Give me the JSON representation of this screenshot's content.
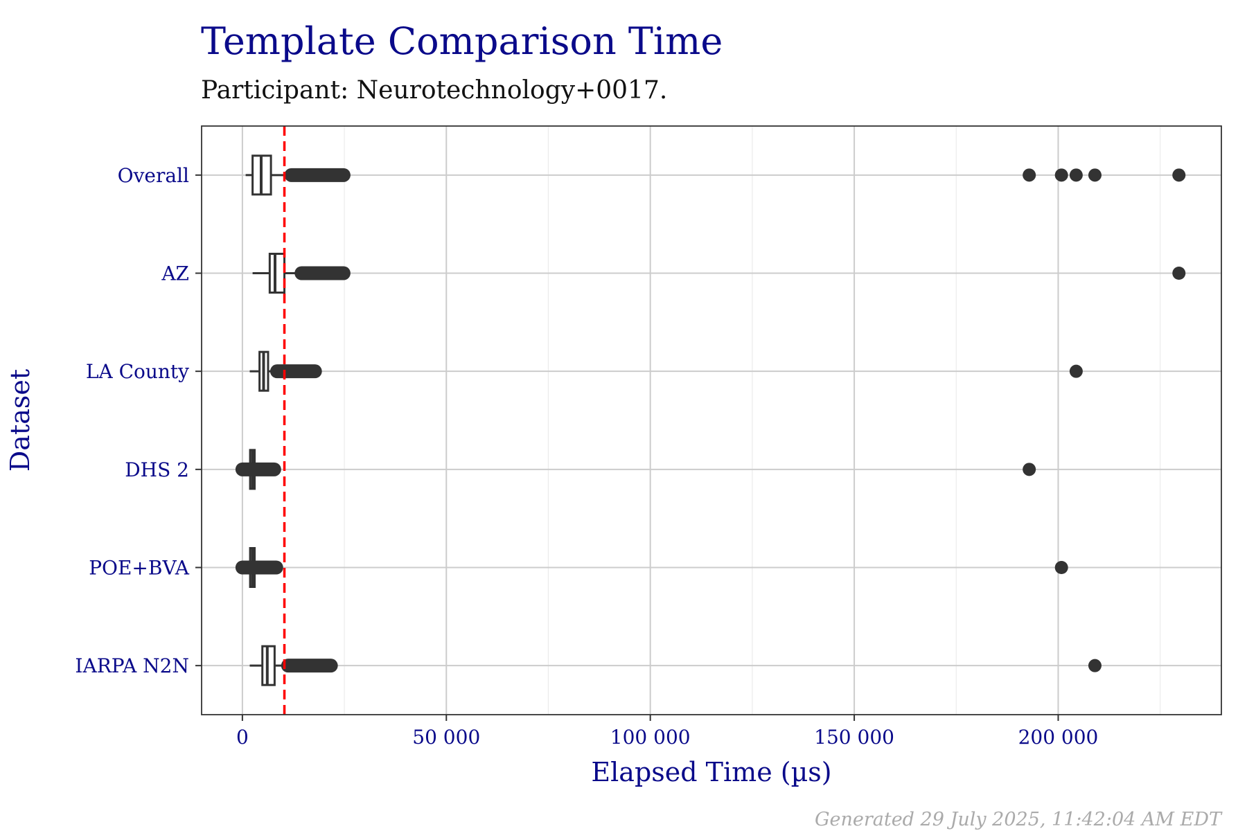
{
  "chart_data": {
    "type": "boxplot",
    "title": "Template Comparison Time",
    "subtitle": "Participant: Neurotechnology+0017.",
    "xlabel": "Elapsed Time (µs)",
    "ylabel": "Dataset",
    "xlim": [
      -10000,
      240000
    ],
    "x_ticks": [
      0,
      50000,
      100000,
      150000,
      200000
    ],
    "x_tick_labels": [
      "0",
      "50 000",
      "100 000",
      "150 000",
      "200 000"
    ],
    "reference_line": {
      "value": 10300,
      "color": "#ff0000",
      "style": "dashed"
    },
    "grid": true,
    "colors": {
      "title": "#0a0a8a",
      "box": "#333333",
      "grid": "#cccccc"
    },
    "categories": [
      "Overall",
      "AZ",
      "LA County",
      "DHS 2",
      "POE+BVA",
      "IARPA N2N"
    ],
    "boxes": [
      {
        "name": "Overall",
        "q1": 2500,
        "median": 4600,
        "q3": 7000,
        "whisker_low": 800,
        "whisker_high": 12000,
        "dense_outliers": [
          12000,
          24800
        ],
        "outliers": [
          192900,
          200800,
          204400,
          209000,
          229600
        ]
      },
      {
        "name": "AZ",
        "q1": 6700,
        "median": 8000,
        "q3": 10300,
        "whisker_low": 2500,
        "whisker_high": 14500,
        "dense_outliers": [
          14500,
          24800
        ],
        "outliers": [
          229600
        ]
      },
      {
        "name": "LA County",
        "q1": 4200,
        "median": 5200,
        "q3": 6300,
        "whisker_low": 1800,
        "whisker_high": 8500,
        "dense_outliers": [
          8500,
          17800
        ],
        "outliers": [
          204400
        ]
      },
      {
        "name": "DHS 2",
        "q1": 1900,
        "median": 2500,
        "q3": 3000,
        "whisker_low": 0,
        "whisker_high": 4500,
        "dense_outliers": [
          0,
          7800
        ],
        "outliers": [
          192900
        ]
      },
      {
        "name": "POE+BVA",
        "q1": 1900,
        "median": 2500,
        "q3": 3000,
        "whisker_low": 0,
        "whisker_high": 4500,
        "dense_outliers": [
          0,
          8300
        ],
        "outliers": [
          200800
        ]
      },
      {
        "name": "IARPA N2N",
        "q1": 4900,
        "median": 6100,
        "q3": 7900,
        "whisker_low": 1800,
        "whisker_high": 11200,
        "dense_outliers": [
          11200,
          21700
        ],
        "outliers": [
          209000
        ]
      }
    ],
    "caption": "Generated 29 July 2025, 11:42:04 AM EDT"
  }
}
